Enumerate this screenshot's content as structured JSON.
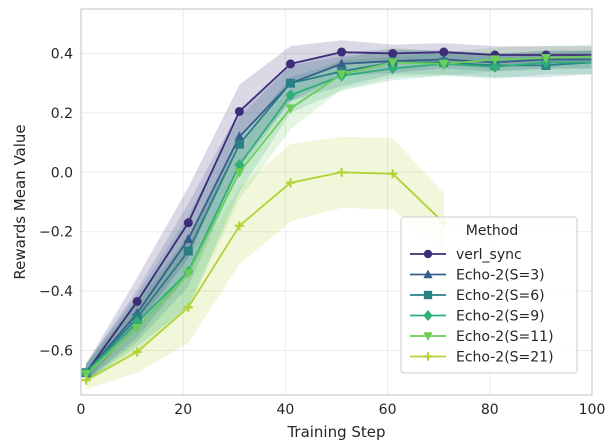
{
  "chart_data": {
    "type": "line",
    "xlabel": "Training Step",
    "ylabel": "Rewards Mean Value",
    "xlim": [
      0,
      100
    ],
    "ylim": [
      -0.75,
      0.55
    ],
    "xticks": [
      0,
      20,
      40,
      60,
      80,
      100
    ],
    "yticks": [
      -0.6,
      -0.4,
      -0.2,
      0.0,
      0.2,
      0.4
    ],
    "ytick_labels": [
      "−0.6",
      "−0.4",
      "−0.2",
      "0.0",
      "0.2",
      "0.4"
    ],
    "grid": true,
    "legend": {
      "title": "Method",
      "placement": "lower-right"
    },
    "series": [
      {
        "name": "verl_sync",
        "color": "#3d2c78",
        "marker": "circle",
        "x": [
          1,
          11,
          21,
          31,
          41,
          51,
          61,
          71,
          81,
          91,
          101
        ],
        "y": [
          -0.675,
          -0.435,
          -0.17,
          0.205,
          0.365,
          0.405,
          0.4,
          0.405,
          0.395,
          0.395,
          0.395
        ],
        "band": [
          0.03,
          0.08,
          0.12,
          0.09,
          0.06,
          0.04,
          0.03,
          0.03,
          0.03,
          0.03,
          0.03
        ]
      },
      {
        "name": "Echo-2(S=3)",
        "color": "#365e8a",
        "marker": "triangle",
        "x": [
          1,
          11,
          21,
          31,
          41,
          51,
          61,
          71,
          81,
          91,
          101
        ],
        "y": [
          -0.675,
          -0.475,
          -0.225,
          0.12,
          0.3,
          0.365,
          0.375,
          0.38,
          0.37,
          0.38,
          0.38
        ],
        "band": [
          0.03,
          0.08,
          0.12,
          0.09,
          0.06,
          0.04,
          0.04,
          0.03,
          0.03,
          0.03,
          0.03
        ]
      },
      {
        "name": "Echo-2(S=6)",
        "color": "#2a7f84",
        "marker": "square",
        "x": [
          1,
          11,
          21,
          31,
          41,
          51,
          61,
          71,
          81,
          91,
          101
        ],
        "y": [
          -0.675,
          -0.49,
          -0.265,
          0.095,
          0.3,
          0.34,
          0.37,
          0.37,
          0.36,
          0.36,
          0.37
        ],
        "band": [
          0.03,
          0.08,
          0.12,
          0.09,
          0.06,
          0.05,
          0.04,
          0.04,
          0.04,
          0.04,
          0.04
        ]
      },
      {
        "name": "Echo-2(S=9)",
        "color": "#2fae77",
        "marker": "diamond",
        "x": [
          1,
          11,
          21,
          31,
          41,
          51,
          61,
          71,
          81,
          91,
          101
        ],
        "y": [
          -0.675,
          -0.505,
          -0.335,
          0.025,
          0.26,
          0.325,
          0.35,
          0.365,
          0.355,
          0.37,
          0.37
        ],
        "band": [
          0.03,
          0.08,
          0.12,
          0.09,
          0.06,
          0.05,
          0.04,
          0.04,
          0.04,
          0.04,
          0.04
        ]
      },
      {
        "name": "Echo-2(S=11)",
        "color": "#6cce59",
        "marker": "triangle-down",
        "x": [
          1,
          11,
          21,
          31,
          41,
          51,
          61,
          71,
          81,
          91,
          101
        ],
        "y": [
          -0.68,
          -0.525,
          -0.34,
          -0.0,
          0.215,
          0.33,
          0.37,
          0.365,
          0.38,
          0.385,
          0.39
        ],
        "band": [
          0.03,
          0.08,
          0.12,
          0.09,
          0.07,
          0.05,
          0.05,
          0.04,
          0.04,
          0.04,
          0.04
        ]
      },
      {
        "name": "Echo-2(S=21)",
        "color": "#b3d335",
        "marker": "plus",
        "x": [
          1,
          11,
          21,
          31,
          41,
          51,
          61,
          71
        ],
        "y": [
          -0.7,
          -0.605,
          -0.455,
          -0.18,
          -0.035,
          -0.0,
          -0.005,
          -0.17
        ],
        "band": [
          0.03,
          0.07,
          0.12,
          0.13,
          0.13,
          0.12,
          0.12,
          0.1
        ]
      }
    ]
  }
}
